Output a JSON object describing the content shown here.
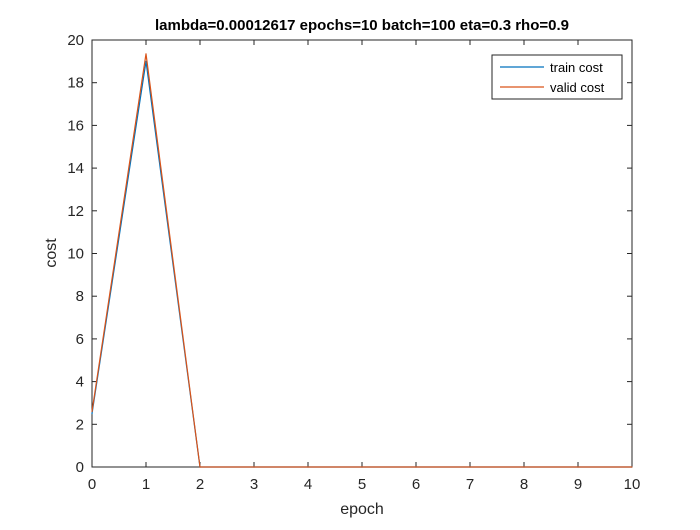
{
  "chart_data": {
    "type": "line",
    "title": "lambda=0.00012617 epochs=10 batch=100 eta=0.3 rho=0.9",
    "xlabel": "epoch",
    "ylabel": "cost",
    "xlim": [
      0,
      10
    ],
    "ylim": [
      0,
      20
    ],
    "xticks": [
      0,
      1,
      2,
      3,
      4,
      5,
      6,
      7,
      8,
      9,
      10
    ],
    "yticks": [
      0,
      2,
      4,
      6,
      8,
      10,
      12,
      14,
      16,
      18,
      20
    ],
    "grid": false,
    "legend_position": "top-right",
    "x": [
      0,
      1,
      2,
      3,
      4,
      5,
      6,
      7,
      8,
      9,
      10
    ],
    "series": [
      {
        "name": "train cost",
        "color": "#0072BD",
        "values": [
          2.5,
          19.0,
          0.0,
          0.0,
          0.0,
          0.0,
          0.0,
          0.0,
          0.0,
          0.0,
          0.0
        ]
      },
      {
        "name": "valid cost",
        "color": "#D95319",
        "values": [
          2.6,
          19.35,
          0.0,
          0.0,
          0.0,
          0.0,
          0.0,
          0.0,
          0.0,
          0.0,
          0.0
        ]
      }
    ]
  }
}
